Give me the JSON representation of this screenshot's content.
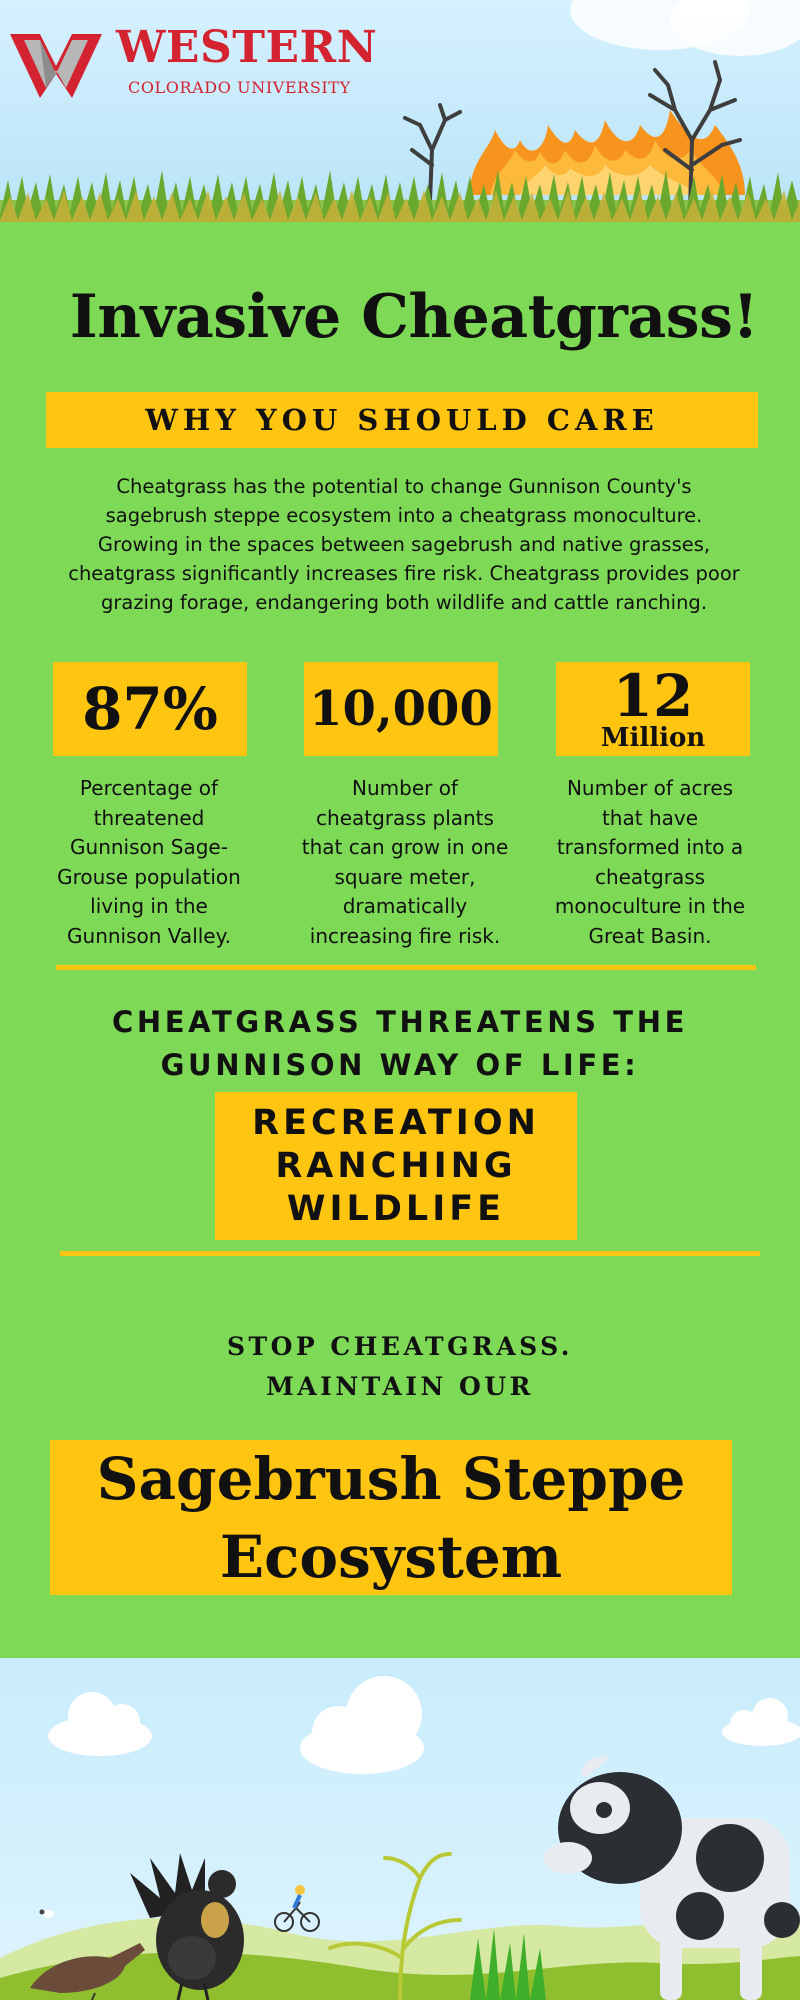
{
  "header": {
    "logo_word": "WESTERN",
    "logo_sub": "COLORADO UNIVERSITY"
  },
  "title": "Invasive Cheatgrass!",
  "why_banner": "WHY YOU SHOULD CARE",
  "intro": "Cheatgrass has the potential to change Gunnison County's sagebrush steppe ecosystem into a cheatgrass monoculture. Growing in the spaces between sagebrush and native grasses, cheatgrass significantly increases fire risk. Cheatgrass provides poor grazing forage, endangering both wildlife and cattle ranching.",
  "stats": [
    {
      "value": "87%",
      "description": "Percentage of threatened Gunnison Sage-Grouse population living in the Gunnison Valley."
    },
    {
      "value": "10,000",
      "description": "Number of cheatgrass plants that can grow in one square meter, dramatically increasing fire risk."
    },
    {
      "value": "12",
      "value_suffix": "Million",
      "description": "Number of acres that have transformed into a cheatgrass monoculture in the Great Basin."
    }
  ],
  "threat": {
    "line1": "CHEATGRASS THREATENS THE",
    "line2": "GUNNISON WAY OF LIFE:"
  },
  "way_of_life": [
    "RECREATION",
    "RANCHING",
    "WILDLIFE"
  ],
  "stop": {
    "line1": "STOP CHEATGRASS.",
    "line2": "MAINTAIN OUR"
  },
  "sagebrush": {
    "line1": "Sagebrush Steppe",
    "line2": "Ecosystem"
  },
  "colors": {
    "background_green": "#7ed957",
    "banner_yellow": "#ffc511",
    "logo_red": "#d42330",
    "sky_blue": "#c9ecfb",
    "fire_orange": "#f7941d"
  },
  "illustrations": {
    "top": [
      "university-logo-icon",
      "dead-tree-icon",
      "fire-icon",
      "grass-icon"
    ],
    "bottom": [
      "cloud-icon",
      "sage-grouse-icon",
      "bird-icon",
      "cyclist-icon",
      "cheatgrass-plant-icon",
      "cow-icon",
      "hills-icon",
      "sheep-icon"
    ]
  }
}
